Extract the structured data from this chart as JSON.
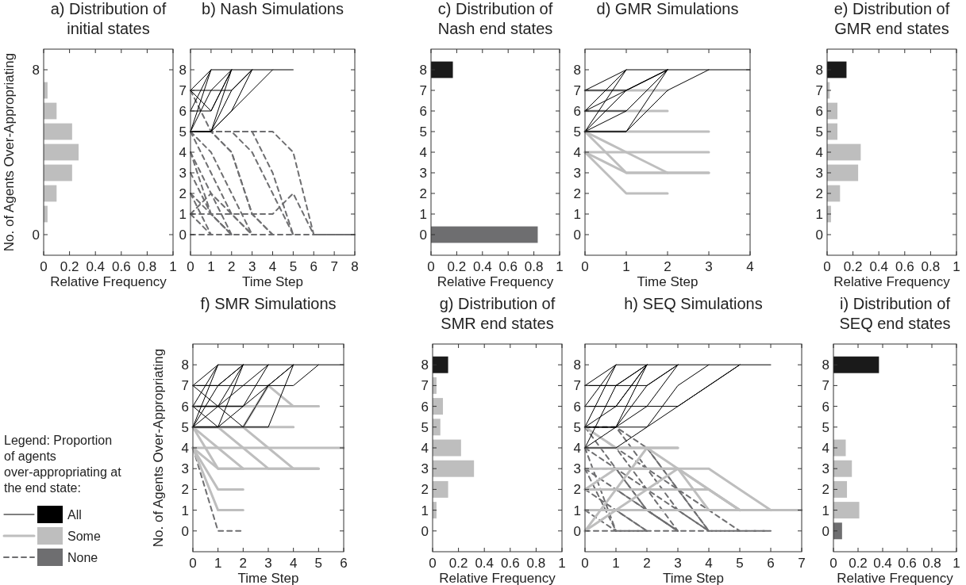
{
  "chart_data": [
    {
      "type": "bar",
      "orientation": "horizontal",
      "title": "a) Distribution of initial states",
      "xlabel": "Relative Frequency",
      "ylabel": "No. of Agents Over-Appropriating",
      "categories": [
        "8",
        null,
        null,
        null,
        null,
        null,
        null,
        null,
        "0"
      ],
      "values": [
        0,
        0.03,
        0.1,
        0.22,
        0.27,
        0.22,
        0.1,
        0.03,
        0
      ],
      "colors": [
        "#1a1a1a",
        "#bebebe",
        "#bebebe",
        "#bebebe",
        "#bebebe",
        "#bebebe",
        "#bebebe",
        "#bebebe",
        "#6e6e70"
      ],
      "xlim": [
        0,
        1
      ],
      "xticks": [
        0,
        0.2,
        0.4,
        0.6,
        0.8,
        1
      ]
    },
    {
      "type": "line",
      "title": "b) Nash Simulations",
      "xlabel": "Time Step",
      "xlim": [
        0,
        8
      ],
      "xticks": [
        0,
        1,
        2,
        3,
        4,
        5,
        6,
        7,
        8
      ],
      "ylim": [
        -1,
        9
      ],
      "yticks": [
        0,
        1,
        2,
        3,
        4,
        5,
        6,
        7,
        8
      ],
      "series": [
        {
          "color": "#000000",
          "x": [
            0,
            1,
            2,
            3,
            4,
            5
          ],
          "values": [
            7,
            8,
            8,
            8,
            8,
            8
          ]
        },
        {
          "color": "#000000",
          "x": [
            0,
            1
          ],
          "values": [
            6,
            8
          ]
        },
        {
          "color": "#000000",
          "x": [
            0,
            1
          ],
          "values": [
            5,
            8
          ]
        },
        {
          "color": "#000000",
          "x": [
            0,
            1,
            2
          ],
          "values": [
            7,
            6,
            8
          ]
        },
        {
          "color": "#000000",
          "x": [
            0,
            1,
            2
          ],
          "values": [
            6,
            6,
            8
          ]
        },
        {
          "color": "#000000",
          "x": [
            0,
            1,
            2,
            3
          ],
          "values": [
            5,
            7,
            7,
            8
          ]
        },
        {
          "color": "#000000",
          "x": [
            0,
            1,
            2
          ],
          "values": [
            5,
            5,
            8
          ]
        },
        {
          "color": "#000000",
          "x": [
            0,
            1,
            2,
            3
          ],
          "values": [
            5,
            5,
            7,
            8
          ]
        },
        {
          "color": "#000000",
          "x": [
            0,
            1,
            2,
            3
          ],
          "values": [
            5,
            5,
            6,
            8
          ]
        },
        {
          "color": "#000000",
          "x": [
            0,
            1,
            2,
            3,
            4
          ],
          "values": [
            5,
            5,
            6,
            7,
            8
          ]
        },
        {
          "color": "#000000",
          "x": [
            0,
            1,
            2
          ],
          "values": [
            7,
            7,
            8
          ]
        },
        {
          "color": "#6e6e70",
          "line_style": "dashed",
          "x": [
            0,
            1,
            2,
            3,
            4,
            5,
            6,
            7,
            8
          ],
          "values": [
            5,
            5,
            5,
            5,
            5,
            4,
            0,
            0,
            0
          ]
        },
        {
          "color": "#6e6e70",
          "line_style": "dashed",
          "x": [
            0,
            1,
            2,
            3,
            4,
            5
          ],
          "values": [
            5,
            5,
            5,
            5,
            3,
            0
          ]
        },
        {
          "color": "#6e6e70",
          "line_style": "dashed",
          "x": [
            0,
            1,
            2,
            3,
            4,
            5
          ],
          "values": [
            5,
            5,
            5,
            4,
            2,
            0
          ]
        },
        {
          "color": "#6e6e70",
          "line_style": "dashed",
          "x": [
            0,
            1,
            2,
            3,
            4
          ],
          "values": [
            5,
            5,
            4,
            1,
            0
          ]
        },
        {
          "color": "#6e6e70",
          "line_style": "dashed",
          "x": [
            0,
            1,
            2,
            3
          ],
          "values": [
            5,
            3,
            1,
            0
          ]
        },
        {
          "color": "#6e6e70",
          "line_style": "dashed",
          "x": [
            0,
            1,
            2,
            3
          ],
          "values": [
            5,
            4,
            2,
            0
          ]
        },
        {
          "color": "#6e6e70",
          "line_style": "dashed",
          "x": [
            0,
            1,
            2
          ],
          "values": [
            4,
            2,
            0
          ]
        },
        {
          "color": "#6e6e70",
          "line_style": "dashed",
          "x": [
            0,
            1,
            2
          ],
          "values": [
            4,
            1,
            0
          ]
        },
        {
          "color": "#6e6e70",
          "line_style": "dashed",
          "x": [
            0,
            1,
            2
          ],
          "values": [
            3,
            1,
            0
          ]
        },
        {
          "color": "#6e6e70",
          "line_style": "dashed",
          "x": [
            0,
            1,
            2
          ],
          "values": [
            2,
            1,
            0
          ]
        },
        {
          "color": "#6e6e70",
          "line_style": "dashed",
          "x": [
            0,
            1
          ],
          "values": [
            1,
            0
          ]
        },
        {
          "color": "#6e6e70",
          "line_style": "dashed",
          "x": [
            0,
            1,
            2,
            3
          ],
          "values": [
            1,
            2,
            1,
            0
          ]
        },
        {
          "color": "#6e6e70",
          "line_style": "dashed",
          "x": [
            0,
            1
          ],
          "values": [
            2,
            0
          ]
        },
        {
          "color": "#6e6e70",
          "line_style": "dashed",
          "x": [
            0,
            1,
            2,
            3,
            4,
            5,
            6
          ],
          "values": [
            1,
            1,
            1,
            1,
            1,
            2,
            0
          ]
        },
        {
          "color": "#6e6e70",
          "line_style": "dashed",
          "x": [
            0,
            1,
            2,
            3,
            4
          ],
          "values": [
            7,
            5,
            4,
            1,
            0
          ]
        },
        {
          "color": "#6e6e70",
          "line_style": "dashed",
          "x": [
            0,
            1,
            2,
            3,
            4,
            5,
            6,
            7,
            8
          ],
          "values": [
            0,
            0,
            0,
            0,
            0,
            0,
            0,
            0,
            0
          ]
        }
      ]
    },
    {
      "type": "bar",
      "orientation": "horizontal",
      "title": "c) Distribution of Nash end states",
      "xlabel": "Relative Frequency",
      "categories": [
        "8",
        "7",
        "6",
        "5",
        "4",
        "3",
        "2",
        "1",
        "0"
      ],
      "values": [
        0.17,
        0,
        0,
        0,
        0,
        0,
        0,
        0,
        0.83
      ],
      "colors": [
        "#1a1a1a",
        "#bebebe",
        "#bebebe",
        "#bebebe",
        "#bebebe",
        "#bebebe",
        "#bebebe",
        "#bebebe",
        "#6e6e70"
      ],
      "xlim": [
        0,
        1
      ],
      "xticks": [
        0,
        0.2,
        0.4,
        0.6,
        0.8,
        1
      ]
    },
    {
      "type": "line",
      "title": "d) GMR Simulations",
      "xlabel": "Time Step",
      "xlim": [
        0,
        4
      ],
      "xticks": [
        0,
        1,
        2,
        3,
        4
      ],
      "ylim": [
        -1,
        9
      ],
      "yticks": [
        0,
        1,
        2,
        3,
        4,
        5,
        6,
        7,
        8
      ],
      "series": [
        {
          "color": "#000000",
          "x": [
            0,
            1,
            2,
            3,
            4
          ],
          "values": [
            7,
            8,
            8,
            8,
            8
          ]
        },
        {
          "color": "#000000",
          "x": [
            0,
            1
          ],
          "values": [
            6,
            8
          ]
        },
        {
          "color": "#000000",
          "x": [
            0,
            1
          ],
          "values": [
            5,
            8
          ]
        },
        {
          "color": "#000000",
          "x": [
            0,
            1,
            2
          ],
          "values": [
            7,
            7,
            8
          ]
        },
        {
          "color": "#000000",
          "x": [
            0,
            1,
            2
          ],
          "values": [
            6,
            7,
            8
          ]
        },
        {
          "color": "#000000",
          "x": [
            0,
            1,
            2
          ],
          "values": [
            5,
            7,
            8
          ]
        },
        {
          "color": "#000000",
          "x": [
            0,
            1,
            2
          ],
          "values": [
            6,
            6,
            8
          ]
        },
        {
          "color": "#000000",
          "x": [
            0,
            1,
            2
          ],
          "values": [
            5,
            6,
            8
          ]
        },
        {
          "color": "#000000",
          "x": [
            0,
            1,
            2
          ],
          "values": [
            5,
            5,
            8
          ]
        },
        {
          "color": "#000000",
          "x": [
            0,
            1,
            2,
            3
          ],
          "values": [
            5,
            5,
            7,
            8
          ]
        },
        {
          "color": "#bebebe",
          "x": [
            0,
            1,
            2
          ],
          "values": [
            7,
            7,
            7
          ]
        },
        {
          "color": "#bebebe",
          "x": [
            0,
            1,
            2
          ],
          "values": [
            6,
            6,
            6
          ]
        },
        {
          "color": "#bebebe",
          "x": [
            0,
            1,
            2,
            3
          ],
          "values": [
            5,
            5,
            5,
            5
          ]
        },
        {
          "color": "#bebebe",
          "x": [
            0,
            1,
            2,
            3
          ],
          "values": [
            4,
            4,
            4,
            4
          ]
        },
        {
          "color": "#bebebe",
          "x": [
            0,
            1,
            2,
            3
          ],
          "values": [
            5,
            4,
            3,
            3
          ]
        },
        {
          "color": "#bebebe",
          "x": [
            0,
            1,
            2
          ],
          "values": [
            5,
            3,
            3
          ]
        },
        {
          "color": "#bebebe",
          "x": [
            0,
            1,
            2,
            3
          ],
          "values": [
            4,
            3,
            3,
            3
          ]
        },
        {
          "color": "#bebebe",
          "x": [
            0,
            1,
            2
          ],
          "values": [
            4,
            2,
            2
          ]
        }
      ]
    },
    {
      "type": "bar",
      "orientation": "horizontal",
      "title": "e) Distribution of GMR end states",
      "xlabel": "Relative Frequency",
      "categories": [
        "8",
        "7",
        "6",
        "5",
        "4",
        "3",
        "2",
        "1",
        "0"
      ],
      "values": [
        0.15,
        0.02,
        0.08,
        0.08,
        0.26,
        0.24,
        0.1,
        0.03,
        0
      ],
      "colors": [
        "#1a1a1a",
        "#bebebe",
        "#bebebe",
        "#bebebe",
        "#bebebe",
        "#bebebe",
        "#bebebe",
        "#bebebe",
        "#6e6e70"
      ],
      "xlim": [
        0,
        1
      ],
      "xticks": [
        0,
        0.2,
        0.4,
        0.6,
        0.8,
        1
      ]
    },
    {
      "type": "line",
      "title": "f) SMR Simulations",
      "xlabel": "Time Step",
      "ylabel": "No. of Agents Over-Appropriating",
      "legend": "left",
      "legend_title": "Legend: Proportion of agents over-appropriating at the end state:",
      "xlim": [
        0,
        6
      ],
      "xticks": [
        0,
        1,
        2,
        3,
        4,
        5,
        6
      ],
      "ylim": [
        -1,
        9
      ],
      "yticks": [
        0,
        1,
        2,
        3,
        4,
        5,
        6,
        7,
        8
      ],
      "series": [
        {
          "name": "All",
          "color": "#000000",
          "x": [
            0,
            1,
            2,
            3,
            4,
            5,
            6
          ],
          "values": [
            7,
            8,
            8,
            8,
            8,
            8,
            8
          ]
        },
        {
          "color": "#000000",
          "x": [
            0,
            1
          ],
          "values": [
            5,
            8
          ]
        },
        {
          "color": "#000000",
          "x": [
            0,
            1
          ],
          "values": [
            6,
            8
          ]
        },
        {
          "color": "#000000",
          "x": [
            0,
            1,
            2
          ],
          "values": [
            7,
            7,
            8
          ]
        },
        {
          "color": "#000000",
          "x": [
            0,
            1,
            2
          ],
          "values": [
            5,
            7,
            8
          ]
        },
        {
          "color": "#000000",
          "x": [
            0,
            1,
            2
          ],
          "values": [
            6,
            6,
            8
          ]
        },
        {
          "color": "#000000",
          "x": [
            0,
            1,
            2
          ],
          "values": [
            5,
            5,
            8
          ]
        },
        {
          "color": "#000000",
          "x": [
            0,
            1,
            2,
            3,
            4
          ],
          "values": [
            7,
            6,
            5,
            7,
            8
          ]
        },
        {
          "color": "#000000",
          "x": [
            0,
            1,
            2,
            3
          ],
          "values": [
            5,
            6,
            7,
            8
          ]
        },
        {
          "color": "#000000",
          "x": [
            0,
            1,
            2,
            3
          ],
          "values": [
            6,
            5,
            6,
            8
          ]
        },
        {
          "color": "#000000",
          "x": [
            0,
            1,
            2,
            3,
            4
          ],
          "values": [
            5,
            5,
            5,
            5,
            8
          ]
        },
        {
          "color": "#000000",
          "x": [
            0,
            1,
            2,
            3,
            4,
            5
          ],
          "values": [
            7,
            7,
            7,
            7,
            7,
            8
          ]
        },
        {
          "color": "#000000",
          "x": [
            0,
            1,
            2,
            3,
            4
          ],
          "values": [
            6,
            6,
            6,
            7,
            8
          ]
        },
        {
          "name": "Some",
          "color": "#bebebe",
          "x": [
            0,
            1,
            2,
            3,
            4,
            5
          ],
          "values": [
            6,
            6,
            6,
            6,
            6,
            6
          ]
        },
        {
          "color": "#bebebe",
          "x": [
            0,
            1,
            2,
            3,
            4
          ],
          "values": [
            5,
            5,
            5,
            5,
            5
          ]
        },
        {
          "color": "#bebebe",
          "x": [
            0,
            1,
            2,
            3,
            4,
            5,
            6
          ],
          "values": [
            4,
            4,
            4,
            4,
            4,
            4,
            4
          ]
        },
        {
          "color": "#bebebe",
          "x": [
            0,
            1,
            2,
            3,
            4,
            5
          ],
          "values": [
            5,
            4,
            3,
            3,
            3,
            3
          ]
        },
        {
          "color": "#bebebe",
          "x": [
            0,
            1,
            2,
            3,
            4,
            5
          ],
          "values": [
            5,
            5,
            4,
            3,
            3,
            3
          ]
        },
        {
          "color": "#bebebe",
          "x": [
            0,
            1,
            2,
            3,
            4,
            5
          ],
          "values": [
            5,
            5,
            5,
            4,
            3,
            3
          ]
        },
        {
          "color": "#bebebe",
          "x": [
            0,
            1,
            2
          ],
          "values": [
            5,
            3,
            3
          ]
        },
        {
          "color": "#bebebe",
          "x": [
            0,
            1,
            2
          ],
          "values": [
            4,
            3,
            3
          ]
        },
        {
          "color": "#bebebe",
          "x": [
            0,
            1,
            2
          ],
          "values": [
            4,
            2,
            2
          ]
        },
        {
          "color": "#bebebe",
          "x": [
            0,
            1,
            2
          ],
          "values": [
            4,
            1,
            1
          ]
        },
        {
          "color": "#bebebe",
          "x": [
            0,
            1,
            2,
            3,
            4,
            5
          ],
          "values": [
            5,
            5,
            5,
            7,
            6,
            6
          ]
        },
        {
          "name": "None",
          "color": "#6e6e70",
          "line_style": "dashed",
          "x": [
            0,
            1,
            2
          ],
          "values": [
            4,
            0,
            0
          ]
        }
      ]
    },
    {
      "type": "bar",
      "orientation": "horizontal",
      "title": "g) Distribution of SMR end states",
      "xlabel": "Relative Frequency",
      "categories": [
        "8",
        "7",
        "6",
        "5",
        "4",
        "3",
        "2",
        "1",
        "0"
      ],
      "values": [
        0.12,
        0.03,
        0.08,
        0.06,
        0.22,
        0.32,
        0.12,
        0.03,
        0
      ],
      "colors": [
        "#1a1a1a",
        "#bebebe",
        "#bebebe",
        "#bebebe",
        "#bebebe",
        "#bebebe",
        "#bebebe",
        "#bebebe",
        "#6e6e70"
      ],
      "xlim": [
        0,
        1
      ],
      "xticks": [
        0,
        0.2,
        0.4,
        0.6,
        0.8,
        1
      ]
    },
    {
      "type": "line",
      "title": "h) SEQ Simulations",
      "xlabel": "Time Step",
      "xlim": [
        0,
        7
      ],
      "xticks": [
        0,
        1,
        2,
        3,
        4,
        5,
        6,
        7
      ],
      "ylim": [
        -1,
        9
      ],
      "yticks": [
        0,
        1,
        2,
        3,
        4,
        5,
        6,
        7,
        8
      ],
      "series": [
        {
          "color": "#000000",
          "x": [
            0,
            1,
            2,
            3,
            4,
            5,
            6
          ],
          "values": [
            7,
            8,
            8,
            8,
            8,
            8,
            8
          ]
        },
        {
          "color": "#000000",
          "x": [
            0,
            1
          ],
          "values": [
            5,
            8
          ]
        },
        {
          "color": "#000000",
          "x": [
            0,
            1
          ],
          "values": [
            6,
            8
          ]
        },
        {
          "color": "#000000",
          "x": [
            0,
            1,
            2
          ],
          "values": [
            7,
            7,
            8
          ]
        },
        {
          "color": "#000000",
          "x": [
            0,
            1,
            2
          ],
          "values": [
            4,
            7,
            8
          ]
        },
        {
          "color": "#000000",
          "x": [
            0,
            1,
            2
          ],
          "values": [
            5,
            6,
            8
          ]
        },
        {
          "color": "#000000",
          "x": [
            0,
            1,
            2
          ],
          "values": [
            6,
            6,
            8
          ]
        },
        {
          "color": "#000000",
          "x": [
            0,
            1,
            2
          ],
          "values": [
            5,
            5,
            8
          ]
        },
        {
          "color": "#000000",
          "x": [
            0,
            1,
            2,
            3
          ],
          "values": [
            4,
            5,
            7,
            8
          ]
        },
        {
          "color": "#000000",
          "x": [
            0,
            1,
            2,
            3
          ],
          "values": [
            5,
            5,
            6,
            8
          ]
        },
        {
          "color": "#000000",
          "x": [
            0,
            1,
            2,
            3,
            4
          ],
          "values": [
            5,
            5,
            5,
            7,
            8
          ]
        },
        {
          "color": "#000000",
          "x": [
            0,
            1,
            2,
            3,
            4,
            5
          ],
          "values": [
            6,
            6,
            6,
            6,
            7,
            8
          ]
        },
        {
          "color": "#000000",
          "x": [
            0,
            1,
            2,
            3,
            4,
            5
          ],
          "values": [
            4,
            4,
            5,
            6,
            7,
            8
          ]
        },
        {
          "color": "#000000",
          "x": [
            0,
            1,
            2,
            3
          ],
          "values": [
            7,
            7,
            7,
            8
          ]
        },
        {
          "color": "#bebebe",
          "x": [
            0,
            1,
            2,
            3,
            4,
            5,
            6,
            7
          ],
          "values": [
            1,
            1,
            1,
            1,
            1,
            1,
            1,
            1
          ]
        },
        {
          "color": "#bebebe",
          "x": [
            0,
            1,
            2,
            3,
            4,
            5,
            6
          ],
          "values": [
            3,
            3,
            3,
            3,
            3,
            2,
            1
          ]
        },
        {
          "color": "#bebebe",
          "x": [
            0,
            1,
            2,
            3,
            4,
            5
          ],
          "values": [
            2,
            2,
            2,
            2,
            2,
            1
          ]
        },
        {
          "color": "#bebebe",
          "x": [
            0,
            1,
            2,
            3,
            4,
            5
          ],
          "values": [
            0,
            1,
            2,
            3,
            2,
            1
          ]
        },
        {
          "color": "#bebebe",
          "x": [
            0,
            1,
            2,
            3
          ],
          "values": [
            5,
            4,
            4,
            4
          ]
        },
        {
          "color": "#bebebe",
          "x": [
            0,
            1,
            2,
            3
          ],
          "values": [
            4,
            4,
            4,
            4
          ]
        },
        {
          "color": "#bebebe",
          "x": [
            0,
            1,
            2,
            3,
            4,
            5
          ],
          "values": [
            2,
            3,
            3,
            3,
            2,
            1
          ]
        },
        {
          "color": "#bebebe",
          "x": [
            0,
            1,
            2,
            3,
            4
          ],
          "values": [
            0,
            2,
            4,
            3,
            1
          ]
        },
        {
          "color": "#6e6e70",
          "line_style": "dashed",
          "x": [
            0,
            1,
            2,
            3,
            4,
            5,
            6
          ],
          "values": [
            5,
            4,
            3,
            2,
            1,
            0,
            0
          ]
        },
        {
          "color": "#6e6e70",
          "line_style": "dashed",
          "x": [
            0,
            1,
            2,
            3,
            4
          ],
          "values": [
            4,
            3,
            2,
            1,
            0
          ]
        },
        {
          "color": "#6e6e70",
          "line_style": "dashed",
          "x": [
            0,
            1,
            2,
            3
          ],
          "values": [
            3,
            2,
            1,
            0
          ]
        },
        {
          "color": "#6e6e70",
          "line_style": "dashed",
          "x": [
            0,
            1,
            2
          ],
          "values": [
            2,
            1,
            0
          ]
        },
        {
          "color": "#6e6e70",
          "line_style": "dashed",
          "x": [
            0,
            1,
            2,
            3
          ],
          "values": [
            5,
            3,
            1,
            0
          ]
        },
        {
          "color": "#6e6e70",
          "line_style": "dashed",
          "x": [
            0,
            1
          ],
          "values": [
            4,
            0
          ]
        },
        {
          "color": "#6e6e70",
          "line_style": "dashed",
          "x": [
            0,
            1,
            2
          ],
          "values": [
            3,
            0,
            0
          ]
        },
        {
          "color": "#6e6e70",
          "line_style": "dashed",
          "x": [
            0,
            1
          ],
          "values": [
            1,
            0
          ]
        },
        {
          "color": "#6e6e70",
          "line_style": "dashed",
          "x": [
            0,
            1,
            2,
            3,
            4,
            5,
            6
          ],
          "values": [
            0,
            0,
            0,
            0,
            0,
            0,
            0
          ]
        },
        {
          "color": "#6e6e70",
          "line_style": "dashed",
          "x": [
            0,
            1,
            2,
            3
          ],
          "values": [
            4,
            4,
            2,
            0
          ]
        },
        {
          "color": "#6e6e70",
          "line_style": "dashed",
          "x": [
            0,
            1,
            2,
            3
          ],
          "values": [
            3,
            3,
            1,
            0
          ]
        },
        {
          "color": "#6e6e70",
          "line_style": "dashed",
          "x": [
            0,
            1,
            2,
            3
          ],
          "values": [
            2,
            2,
            1,
            0
          ]
        },
        {
          "color": "#6e6e70",
          "line_style": "dashed",
          "x": [
            0,
            1,
            2
          ],
          "values": [
            1,
            1,
            0
          ]
        },
        {
          "color": "#6e6e70",
          "line_style": "dashed",
          "x": [
            0,
            1,
            2,
            3,
            4
          ],
          "values": [
            5,
            5,
            3,
            1,
            0
          ]
        },
        {
          "color": "#6e6e70",
          "line_style": "dashed",
          "x": [
            0,
            1,
            2,
            3,
            4
          ],
          "values": [
            4,
            4,
            4,
            2,
            0
          ]
        },
        {
          "color": "#6e6e70",
          "line_style": "dashed",
          "x": [
            0,
            1,
            2,
            3,
            4,
            5
          ],
          "values": [
            5,
            5,
            4,
            2,
            0,
            0
          ]
        }
      ]
    },
    {
      "type": "bar",
      "orientation": "horizontal",
      "title": "i) Distribution of SEQ end states",
      "xlabel": "Relative Frequency",
      "categories": [
        "8",
        "7",
        "6",
        "5",
        "4",
        "3",
        "2",
        "1",
        "0"
      ],
      "values": [
        0.37,
        0,
        0,
        0,
        0.1,
        0.15,
        0.11,
        0.21,
        0.07
      ],
      "colors": [
        "#1a1a1a",
        "#bebebe",
        "#bebebe",
        "#bebebe",
        "#bebebe",
        "#bebebe",
        "#bebebe",
        "#bebebe",
        "#6e6e70"
      ],
      "xlim": [
        0,
        1
      ],
      "xticks": [
        0,
        0.2,
        0.4,
        0.6,
        0.8,
        1
      ]
    }
  ]
}
